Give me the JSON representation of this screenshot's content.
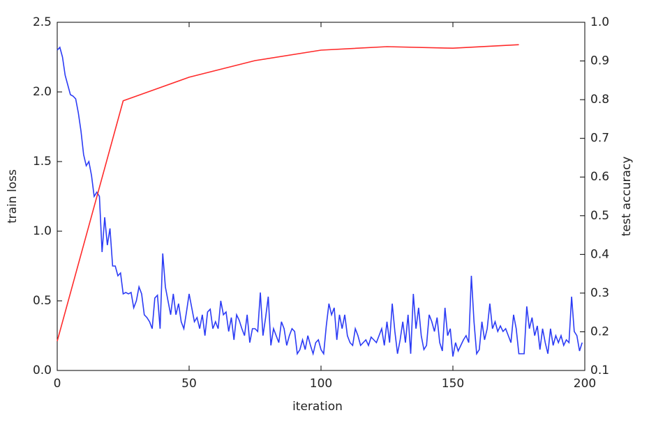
{
  "chart_data": {
    "type": "line",
    "xlabel": "iteration",
    "ylabel": "train loss",
    "y2label": "test accuracy",
    "xlim": [
      0,
      200
    ],
    "xticks": [
      0,
      50,
      100,
      150,
      200
    ],
    "ylim": [
      0,
      2.5
    ],
    "yticks": [
      {
        "value": 0,
        "label": "0.0"
      },
      {
        "value": 0.5,
        "label": "0.5"
      },
      {
        "value": 1,
        "label": "1.0"
      },
      {
        "value": 1.5,
        "label": "1.5"
      },
      {
        "value": 2,
        "label": "2.0"
      },
      {
        "value": 2.5,
        "label": "2.5"
      }
    ],
    "y2lim": [
      0.1,
      1.0
    ],
    "y2ticks": [
      {
        "value": 0.1,
        "label": "0.1"
      },
      {
        "value": 0.2,
        "label": "0.2"
      },
      {
        "value": 0.3,
        "label": "0.3"
      },
      {
        "value": 0.4,
        "label": "0.4"
      },
      {
        "value": 0.5,
        "label": "0.5"
      },
      {
        "value": 0.6,
        "label": "0.6"
      },
      {
        "value": 0.7,
        "label": "0.7"
      },
      {
        "value": 0.8,
        "label": "0.8"
      },
      {
        "value": 0.9,
        "label": "0.9"
      },
      {
        "value": 1.0,
        "label": "1.0"
      }
    ],
    "grid": false,
    "series": [
      {
        "color": "#2b3bf5",
        "axis": "y",
        "x": [
          0,
          1,
          2,
          3,
          4,
          5,
          6,
          7,
          8,
          9,
          10,
          11,
          12,
          13,
          14,
          15,
          16,
          17,
          18,
          19,
          20,
          21,
          22,
          23,
          24,
          25,
          26,
          27,
          28,
          29,
          30,
          31,
          32,
          33,
          34,
          35,
          36,
          37,
          38,
          39,
          40,
          41,
          42,
          43,
          44,
          45,
          46,
          47,
          48,
          49,
          50,
          51,
          52,
          53,
          54,
          55,
          56,
          57,
          58,
          59,
          60,
          61,
          62,
          63,
          64,
          65,
          66,
          67,
          68,
          69,
          70,
          71,
          72,
          73,
          74,
          75,
          76,
          77,
          78,
          79,
          80,
          81,
          82,
          83,
          84,
          85,
          86,
          87,
          88,
          89,
          90,
          91,
          92,
          93,
          94,
          95,
          96,
          97,
          98,
          99,
          100,
          101,
          102,
          103,
          104,
          105,
          106,
          107,
          108,
          109,
          110,
          111,
          112,
          113,
          114,
          115,
          116,
          117,
          118,
          119,
          120,
          121,
          122,
          123,
          124,
          125,
          126,
          127,
          128,
          129,
          130,
          131,
          132,
          133,
          134,
          135,
          136,
          137,
          138,
          139,
          140,
          141,
          142,
          143,
          144,
          145,
          146,
          147,
          148,
          149,
          150,
          151,
          152,
          153,
          154,
          155,
          156,
          157,
          158,
          159,
          160,
          161,
          162,
          163,
          164,
          165,
          166,
          167,
          168,
          169,
          170,
          171,
          172,
          173,
          174,
          175,
          176,
          177,
          178,
          179,
          180,
          181,
          182,
          183,
          184,
          185,
          186,
          187,
          188,
          189,
          190,
          191,
          192,
          193,
          194,
          195,
          196,
          197,
          198,
          199
        ],
        "values": [
          2.3,
          2.32,
          2.25,
          2.12,
          2.05,
          1.98,
          1.97,
          1.95,
          1.85,
          1.72,
          1.55,
          1.47,
          1.5,
          1.4,
          1.25,
          1.28,
          1.25,
          0.85,
          1.1,
          0.9,
          1.02,
          0.75,
          0.75,
          0.68,
          0.7,
          0.55,
          0.56,
          0.55,
          0.56,
          0.45,
          0.5,
          0.6,
          0.55,
          0.4,
          0.38,
          0.35,
          0.3,
          0.52,
          0.54,
          0.3,
          0.84,
          0.6,
          0.5,
          0.4,
          0.55,
          0.4,
          0.48,
          0.35,
          0.3,
          0.42,
          0.55,
          0.45,
          0.35,
          0.38,
          0.3,
          0.4,
          0.25,
          0.42,
          0.44,
          0.3,
          0.35,
          0.3,
          0.5,
          0.4,
          0.42,
          0.28,
          0.38,
          0.22,
          0.4,
          0.36,
          0.3,
          0.25,
          0.4,
          0.2,
          0.3,
          0.3,
          0.28,
          0.56,
          0.25,
          0.38,
          0.53,
          0.18,
          0.3,
          0.25,
          0.2,
          0.35,
          0.3,
          0.18,
          0.25,
          0.3,
          0.28,
          0.12,
          0.15,
          0.22,
          0.15,
          0.25,
          0.18,
          0.12,
          0.2,
          0.22,
          0.15,
          0.12,
          0.32,
          0.48,
          0.4,
          0.45,
          0.22,
          0.4,
          0.3,
          0.4,
          0.25,
          0.2,
          0.18,
          0.3,
          0.25,
          0.18,
          0.2,
          0.22,
          0.18,
          0.24,
          0.22,
          0.2,
          0.25,
          0.3,
          0.18,
          0.35,
          0.2,
          0.48,
          0.28,
          0.12,
          0.22,
          0.35,
          0.2,
          0.4,
          0.12,
          0.55,
          0.3,
          0.45,
          0.25,
          0.15,
          0.18,
          0.4,
          0.35,
          0.28,
          0.38,
          0.2,
          0.14,
          0.45,
          0.25,
          0.3,
          0.1,
          0.2,
          0.14,
          0.18,
          0.22,
          0.25,
          0.2,
          0.68,
          0.35,
          0.12,
          0.15,
          0.35,
          0.22,
          0.3,
          0.48,
          0.3,
          0.35,
          0.28,
          0.32,
          0.28,
          0.3,
          0.25,
          0.2,
          0.4,
          0.3,
          0.12,
          0.12,
          0.12,
          0.46,
          0.3,
          0.38,
          0.25,
          0.32,
          0.15,
          0.3,
          0.2,
          0.12,
          0.3,
          0.18,
          0.25,
          0.2,
          0.25,
          0.18,
          0.22,
          0.2,
          0.53,
          0.28,
          0.25,
          0.14,
          0.2
        ]
      },
      {
        "color": "#ff2a2a",
        "axis": "y2",
        "x": [
          0,
          25,
          50,
          75,
          100,
          125,
          150,
          175
        ],
        "values": [
          0.176,
          0.797,
          0.858,
          0.901,
          0.928,
          0.937,
          0.933,
          0.942
        ]
      }
    ]
  }
}
